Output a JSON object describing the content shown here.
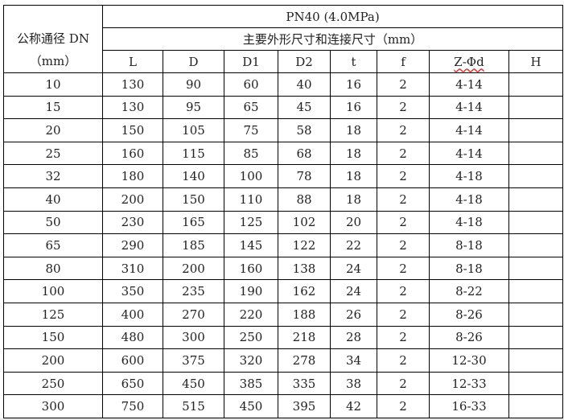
{
  "table": {
    "dn_header_line1": "公称通径 DN",
    "dn_header_line2": "（mm）",
    "pressure_header": "PN40 (4.0MPa)",
    "dimension_header": "主要外形尺寸和连接尺寸（mm）",
    "columns": [
      "L",
      "D",
      "D1",
      "D2",
      "t",
      "f",
      "Z-Φd",
      "H"
    ],
    "rows": [
      [
        "10",
        "130",
        "90",
        "60",
        "40",
        "16",
        "2",
        "4-14",
        ""
      ],
      [
        "15",
        "130",
        "95",
        "65",
        "45",
        "16",
        "2",
        "4-14",
        ""
      ],
      [
        "20",
        "150",
        "105",
        "75",
        "58",
        "18",
        "2",
        "4-14",
        ""
      ],
      [
        "25",
        "160",
        "115",
        "85",
        "68",
        "18",
        "2",
        "4-14",
        ""
      ],
      [
        "32",
        "180",
        "140",
        "100",
        "78",
        "18",
        "2",
        "4-18",
        ""
      ],
      [
        "40",
        "200",
        "150",
        "110",
        "88",
        "18",
        "2",
        "4-18",
        ""
      ],
      [
        "50",
        "230",
        "165",
        "125",
        "102",
        "20",
        "2",
        "4-18",
        ""
      ],
      [
        "65",
        "290",
        "185",
        "145",
        "122",
        "22",
        "2",
        "8-18",
        ""
      ],
      [
        "80",
        "310",
        "200",
        "160",
        "138",
        "24",
        "2",
        "8-18",
        ""
      ],
      [
        "100",
        "350",
        "235",
        "190",
        "162",
        "24",
        "2",
        "8-22",
        ""
      ],
      [
        "125",
        "400",
        "270",
        "220",
        "188",
        "26",
        "2",
        "8-26",
        ""
      ],
      [
        "150",
        "480",
        "300",
        "250",
        "218",
        "28",
        "2",
        "8-26",
        ""
      ],
      [
        "200",
        "600",
        "375",
        "320",
        "278",
        "34",
        "2",
        "12-30",
        ""
      ],
      [
        "250",
        "650",
        "450",
        "385",
        "335",
        "38",
        "2",
        "12-33",
        ""
      ],
      [
        "300",
        "750",
        "515",
        "450",
        "395",
        "42",
        "2",
        "16-33",
        ""
      ]
    ]
  }
}
